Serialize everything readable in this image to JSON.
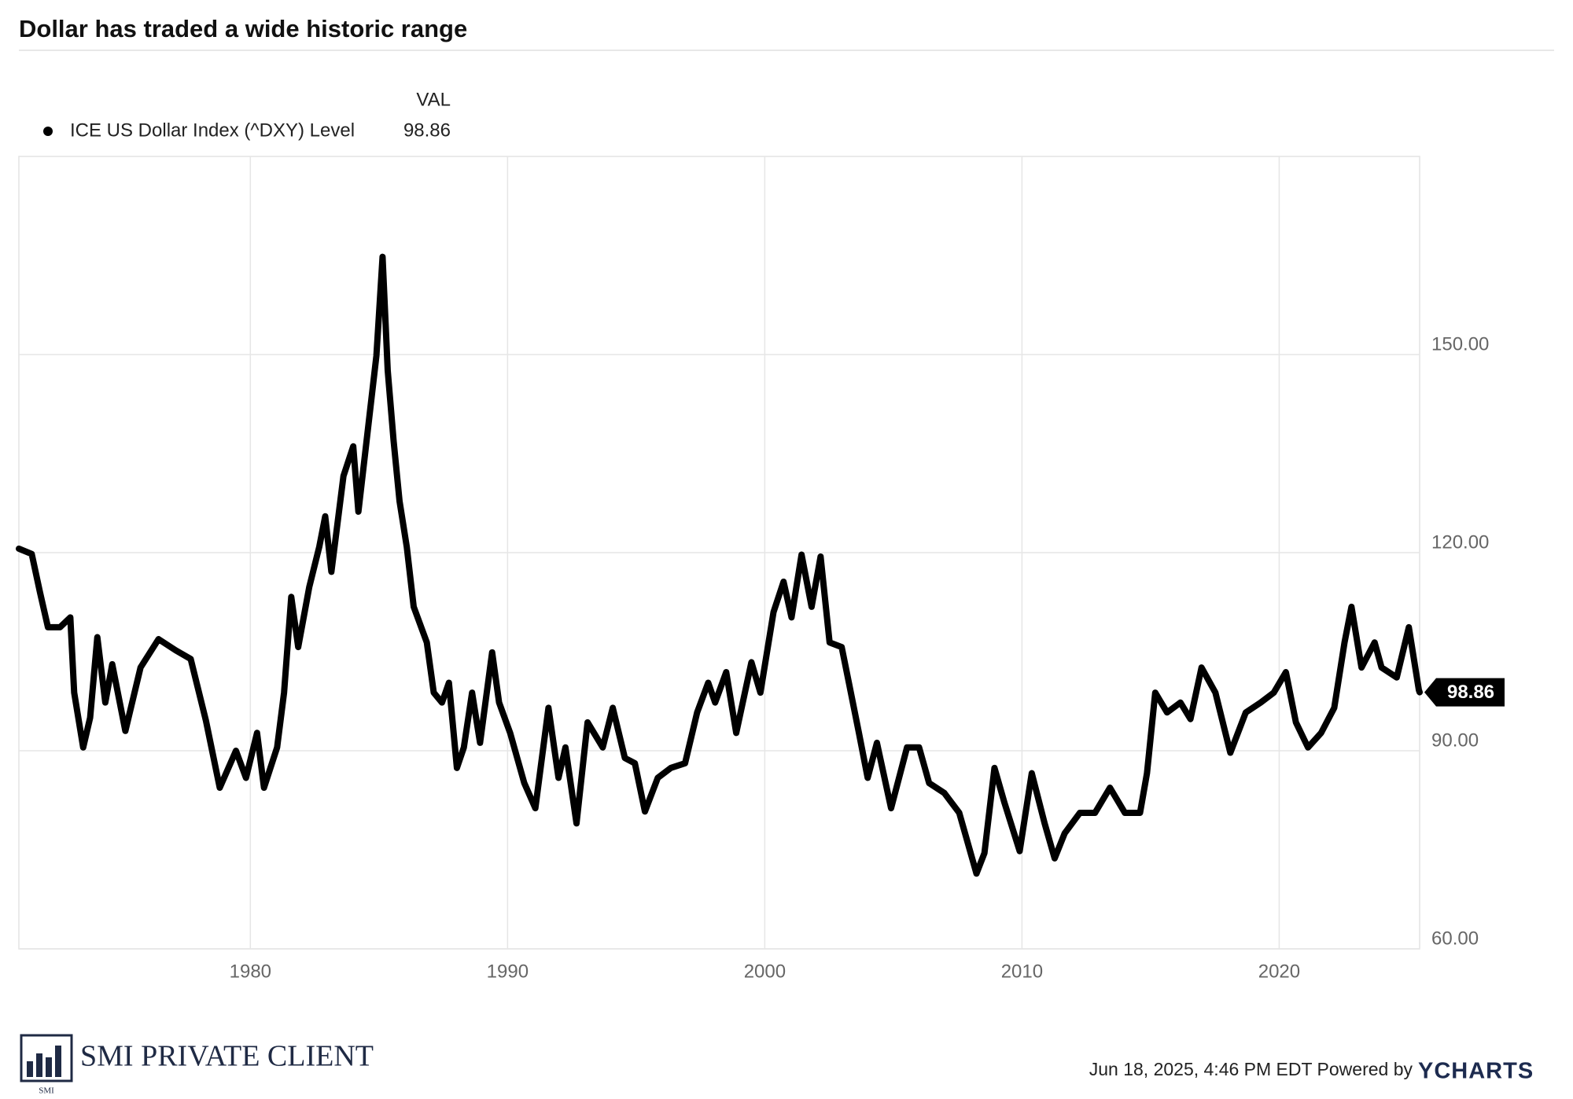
{
  "chart_data": {
    "type": "line",
    "title": "Dollar has traded a wide historic range",
    "legend_header": "VAL",
    "x": [
      1971.0,
      1971.5,
      1971.82,
      1972.13,
      1972.6,
      1973.0,
      1973.15,
      1973.5,
      1973.77,
      1974.05,
      1974.36,
      1974.63,
      1975.14,
      1975.73,
      1976.43,
      1977.1,
      1977.68,
      1978.27,
      1978.81,
      1979.44,
      1979.83,
      1980.26,
      1980.53,
      1981.04,
      1981.31,
      1981.59,
      1981.86,
      1982.29,
      1982.68,
      1982.91,
      1983.15,
      1983.62,
      1984.0,
      1984.2,
      1984.63,
      1984.9,
      1985.14,
      1985.34,
      1985.57,
      1985.8,
      1986.08,
      1986.35,
      1986.86,
      1987.13,
      1987.45,
      1987.72,
      1988.03,
      1988.3,
      1988.62,
      1988.93,
      1989.4,
      1989.67,
      1990.1,
      1990.65,
      1991.08,
      1991.59,
      1991.98,
      1992.25,
      1992.68,
      1993.11,
      1993.7,
      1994.09,
      1994.56,
      1994.95,
      1995.34,
      1995.84,
      1996.35,
      1996.9,
      1997.37,
      1997.8,
      1998.07,
      1998.5,
      1998.89,
      1999.48,
      1999.83,
      2000.34,
      2000.73,
      2001.04,
      2001.43,
      2001.82,
      2002.17,
      2002.52,
      2002.99,
      2003.27,
      2003.66,
      2004.0,
      2004.36,
      2004.91,
      2005.53,
      2006.0,
      2006.39,
      2006.98,
      2007.56,
      2008.23,
      2008.54,
      2008.93,
      2009.32,
      2009.91,
      2010.38,
      2010.88,
      2011.27,
      2011.66,
      2012.25,
      2012.84,
      2013.42,
      2014.0,
      2014.59,
      2014.86,
      2015.18,
      2015.64,
      2016.16,
      2016.55,
      2016.98,
      2017.52,
      2018.1,
      2018.7,
      2019.28,
      2019.79,
      2020.26,
      2020.65,
      2021.12,
      2021.63,
      2022.14,
      2022.54,
      2022.81,
      2023.2,
      2023.71,
      2023.98,
      2024.57,
      2025.04,
      2025.43,
      2025.46
    ],
    "series": [
      {
        "name": "ICE US Dollar Index (^DXY) Level",
        "color": "#000000",
        "values": [
          120.6,
          119.8,
          114,
          108.7,
          108.7,
          110.2,
          98.8,
          90.5,
          95,
          107.2,
          97.3,
          103.1,
          93,
          102.6,
          106.9,
          105.2,
          103.9,
          94.6,
          84.4,
          90,
          85.9,
          92.7,
          84.4,
          90.5,
          98.8,
          113.3,
          105.7,
          114.8,
          120.9,
          125.5,
          117.1,
          131.6,
          136.1,
          126.2,
          140.7,
          149.8,
          164.8,
          147.6,
          136.9,
          127.8,
          120.9,
          111.8,
          106.4,
          98.8,
          97.3,
          100.3,
          87.4,
          90.5,
          98.8,
          91.2,
          104.9,
          97.3,
          92.7,
          85.1,
          81.3,
          96.5,
          85.9,
          90.5,
          79,
          94.3,
          90.5,
          96.5,
          88.9,
          88.1,
          80.8,
          85.9,
          87.4,
          88.1,
          95.8,
          100.3,
          97.3,
          101.9,
          92.7,
          103.4,
          98.8,
          111,
          115.6,
          110.2,
          119.7,
          111.8,
          119.4,
          106.4,
          105.7,
          100.3,
          92.7,
          85.9,
          91.2,
          81.3,
          90.5,
          90.5,
          85.1,
          83.6,
          80.6,
          71.4,
          74.5,
          87.4,
          82.1,
          74.8,
          86.6,
          79,
          73.7,
          77.5,
          80.6,
          80.6,
          84.4,
          80.6,
          80.6,
          86.6,
          98.8,
          95.8,
          97.3,
          94.8,
          102.6,
          98.8,
          89.7,
          95.8,
          97.3,
          98.8,
          101.9,
          94.3,
          90.5,
          92.7,
          96.5,
          106.4,
          111.8,
          102.6,
          106.4,
          102.6,
          101.1,
          108.7,
          99.2,
          98.86
        ]
      }
    ],
    "xlim": [
      1971,
      2025.46
    ],
    "xticks": [
      1980,
      1990,
      2000,
      2010,
      2020
    ],
    "ylim": [
      60,
      180
    ],
    "yticks": [
      {
        "value": 60,
        "label": "60.00"
      },
      {
        "value": 90,
        "label": "90.00"
      },
      {
        "value": 120,
        "label": "120.00"
      },
      {
        "value": 150,
        "label": "150.00"
      }
    ],
    "grid": true,
    "footer": {
      "timestamp": "Jun 18, 2025, 4:46 PM EDT Powered by",
      "brand": "YCHARTS",
      "logo_text": "SMI PRIVATE CLIENT",
      "logo_sub": "SMI"
    }
  }
}
